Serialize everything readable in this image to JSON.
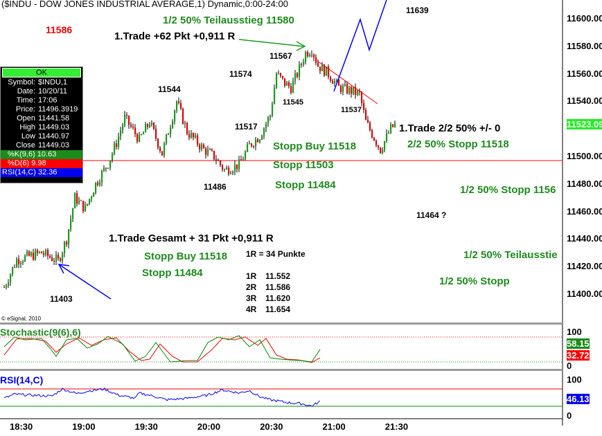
{
  "header": {
    "title": "($INDU - DOW JONES INDUSTRIAL AVERAGE,1) Dynamic,0:00-24:00"
  },
  "info": {
    "ok": "OK",
    "rows": [
      [
        "Symbol:",
        "$INDU,1"
      ],
      [
        "Date:",
        "10/20/11"
      ],
      [
        "Time:",
        "17:06"
      ],
      [
        "Price:",
        "11496.3919"
      ],
      [
        "Open",
        "11441.58"
      ],
      [
        "High",
        "11449.03"
      ],
      [
        "Low",
        "11440.97"
      ],
      [
        "Close",
        "11449.03"
      ]
    ],
    "k": "%K(9,6) 10.63",
    "d": "%D(6) 9.98",
    "rsi": "RSI(14,C) 32.36"
  },
  "annotations": {
    "a1": "11586",
    "a2": "1/2 50% Teilausstieg 11580",
    "a3": "1.Trade +62 Pkt +0,911 R",
    "a4": "11639",
    "a5": "11567",
    "a6": "11574",
    "a7": "11544",
    "a8": "11545",
    "a9": "11537",
    "a10": "11517",
    "a11": "1.Trade 2/2 50% +/- 0",
    "a12": "2/2 50% Stopp 11518",
    "a13": "Stopp Buy 11518",
    "a14": "Stopp 11503",
    "a15": "Stopp 11484",
    "a16": "11486",
    "a17": "1/2 50% Stopp 1156",
    "a18": "11464 ?",
    "a19": "1.Trade Gesamt + 31 Pkt +0,911 R",
    "a20": "1R = 34 Punkte",
    "a21": "Stopp Buy 11518",
    "a22": "Stopp 11484",
    "a23": "1/2 50% Teilausstie",
    "a24": "1/2 50% Stopp",
    "a25": "11403",
    "r": [
      [
        "1R",
        "11.552"
      ],
      [
        "2R",
        "11.586"
      ],
      [
        "3R",
        "11.620"
      ],
      [
        "4R",
        "11.654"
      ]
    ],
    "copyright": "© eSignal, 2010"
  },
  "chart_data": {
    "type": "candlestick",
    "title": "($INDU - DOW JONES INDUSTRIAL AVERAGE,1) Dynamic,0:00-24:00",
    "ylim": [
      11380,
      11620
    ],
    "yticks": [
      "11600.00",
      "11580.00",
      "11560.00",
      "11540.00",
      "11500.00",
      "11480.00",
      "11460.00",
      "11440.00",
      "11420.00",
      "11400.00"
    ],
    "last_price": "11523.09",
    "xticks": [
      "18:30",
      "19:00",
      "19:30",
      "20:00",
      "20:30",
      "21:00",
      "21:30"
    ],
    "price_keypoints": [
      [
        22,
        11405
      ],
      [
        28,
        11425
      ],
      [
        40,
        11430
      ],
      [
        48,
        11424
      ],
      [
        52,
        11440
      ],
      [
        56,
        11470
      ],
      [
        61,
        11462
      ],
      [
        66,
        11480
      ],
      [
        72,
        11495
      ],
      [
        76,
        11510
      ],
      [
        80,
        11528
      ],
      [
        87,
        11512
      ],
      [
        92,
        11525
      ],
      [
        98,
        11502
      ],
      [
        105,
        11540
      ],
      [
        110,
        11518
      ],
      [
        118,
        11505
      ],
      [
        123,
        11500
      ],
      [
        128,
        11490
      ],
      [
        135,
        11494
      ],
      [
        140,
        11508
      ],
      [
        145,
        11515
      ],
      [
        150,
        11530
      ],
      [
        153,
        11560
      ],
      [
        157,
        11553
      ],
      [
        160,
        11550
      ],
      [
        163,
        11560
      ],
      [
        167,
        11575
      ],
      [
        170,
        11578
      ],
      [
        173,
        11566
      ],
      [
        178,
        11560
      ],
      [
        183,
        11550
      ],
      [
        188,
        11548
      ],
      [
        193,
        11545
      ],
      [
        196,
        11525
      ],
      [
        203,
        11505
      ],
      [
        208,
        11520
      ],
      [
        210,
        11523
      ]
    ],
    "horizontal_line": 11497,
    "stochastic": {
      "label": "Stochastic(9(6),6)",
      "k_value": "58.15",
      "d_value": "32.72",
      "levels": [
        "100",
        "0"
      ],
      "k_keypoints": [
        [
          22,
          60
        ],
        [
          27,
          95
        ],
        [
          32,
          85
        ],
        [
          40,
          90
        ],
        [
          44,
          55
        ],
        [
          47,
          25
        ],
        [
          52,
          85
        ],
        [
          57,
          90
        ],
        [
          62,
          55
        ],
        [
          67,
          70
        ],
        [
          72,
          97
        ],
        [
          79,
          70
        ],
        [
          85,
          8
        ],
        [
          90,
          25
        ],
        [
          95,
          75
        ],
        [
          102,
          5
        ],
        [
          110,
          10
        ],
        [
          115,
          10
        ],
        [
          120,
          75
        ],
        [
          125,
          95
        ],
        [
          130,
          85
        ],
        [
          135,
          100
        ],
        [
          140,
          60
        ],
        [
          145,
          85
        ],
        [
          150,
          20
        ],
        [
          155,
          15
        ],
        [
          160,
          12
        ],
        [
          165,
          10
        ],
        [
          170,
          5
        ],
        [
          174,
          50
        ]
      ],
      "d_keypoints": [
        [
          22,
          30
        ],
        [
          28,
          88
        ],
        [
          35,
          90
        ],
        [
          42,
          80
        ],
        [
          47,
          40
        ],
        [
          52,
          70
        ],
        [
          58,
          92
        ],
        [
          64,
          65
        ],
        [
          70,
          85
        ],
        [
          76,
          92
        ],
        [
          82,
          45
        ],
        [
          88,
          10
        ],
        [
          92,
          15
        ],
        [
          97,
          70
        ],
        [
          103,
          25
        ],
        [
          108,
          5
        ],
        [
          115,
          5
        ],
        [
          122,
          50
        ],
        [
          127,
          90
        ],
        [
          133,
          85
        ],
        [
          138,
          95
        ],
        [
          144,
          65
        ],
        [
          148,
          90
        ],
        [
          153,
          30
        ],
        [
          158,
          15
        ],
        [
          164,
          12
        ],
        [
          170,
          3
        ],
        [
          174,
          20
        ]
      ]
    },
    "rsi": {
      "label": "RSI(14,C)",
      "value": "46.13",
      "levels": [
        "100",
        "0"
      ],
      "keypoints": [
        [
          22,
          45
        ],
        [
          27,
          58
        ],
        [
          35,
          55
        ],
        [
          45,
          52
        ],
        [
          50,
          75
        ],
        [
          57,
          60
        ],
        [
          62,
          68
        ],
        [
          70,
          75
        ],
        [
          77,
          55
        ],
        [
          85,
          45
        ],
        [
          87,
          62
        ],
        [
          95,
          50
        ],
        [
          100,
          40
        ],
        [
          110,
          45
        ],
        [
          120,
          55
        ],
        [
          127,
          72
        ],
        [
          135,
          62
        ],
        [
          140,
          70
        ],
        [
          145,
          50
        ],
        [
          150,
          40
        ],
        [
          160,
          30
        ],
        [
          165,
          28
        ],
        [
          170,
          20
        ],
        [
          174,
          35
        ]
      ]
    }
  }
}
